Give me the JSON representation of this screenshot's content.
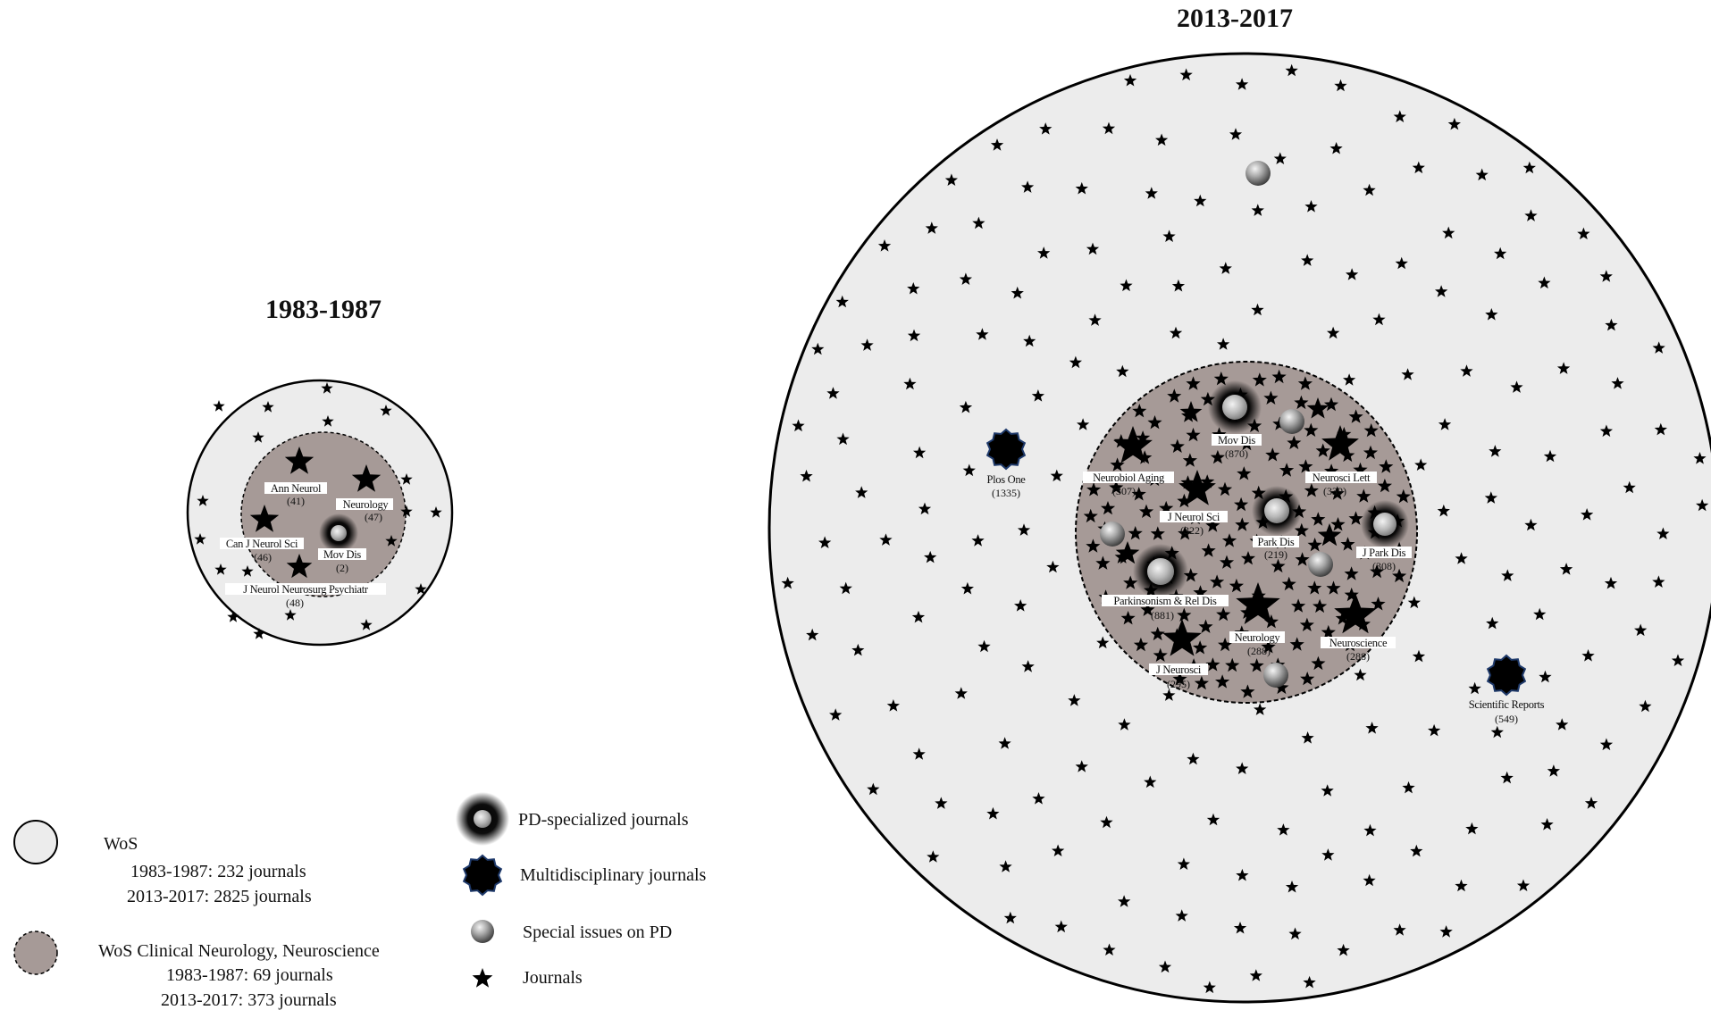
{
  "periods": {
    "early": {
      "title": "1983-1987"
    },
    "late": {
      "title": "2013-2017"
    }
  },
  "early_journals": [
    {
      "key": "ann-neurol",
      "name": "Ann Neurol",
      "count": "(41)",
      "kind": "journal"
    },
    {
      "key": "neurology",
      "name": "Neurology",
      "count": "(47)",
      "kind": "journal"
    },
    {
      "key": "can-j-neurol-sci",
      "name": "Can J Neurol Sci",
      "count": "(46)",
      "kind": "journal"
    },
    {
      "key": "mov-dis",
      "name": "Mov Dis",
      "count": "(2)",
      "kind": "pd-specialized"
    },
    {
      "key": "j-neurol-neurosurg-psychiatr",
      "name": "J Neurol Neurosurg Psychiatr",
      "count": "(48)",
      "kind": "journal"
    }
  ],
  "late_journals": [
    {
      "key": "mov-dis",
      "name": "Mov Dis",
      "count": "(870)",
      "kind": "pd-specialized"
    },
    {
      "key": "neurobiol-aging",
      "name": "Neurobiol Aging",
      "count": "(307)",
      "kind": "journal"
    },
    {
      "key": "neurosci-lett",
      "name": "Neurosci Lett",
      "count": "(339)",
      "kind": "journal"
    },
    {
      "key": "j-neurol-sci",
      "name": "J Neurol Sci",
      "count": "(322)",
      "kind": "journal"
    },
    {
      "key": "park-dis",
      "name": "Park Dis",
      "count": "(219)",
      "kind": "pd-specialized"
    },
    {
      "key": "j-park-dis",
      "name": "J Park Dis",
      "count": "(308)",
      "kind": "pd-specialized"
    },
    {
      "key": "parkinsonism-rel-dis",
      "name": "Parkinsonism & Rel Dis",
      "count": "(881)",
      "kind": "pd-specialized"
    },
    {
      "key": "neurology",
      "name": "Neurology",
      "count": "(288)",
      "kind": "journal"
    },
    {
      "key": "neuroscience",
      "name": "Neuroscience",
      "count": "(288)",
      "kind": "journal"
    },
    {
      "key": "j-neurosci",
      "name": "J Neurosci",
      "count": "(295)",
      "kind": "journal"
    },
    {
      "key": "plos-one",
      "name": "Plos One",
      "count": "(1335)",
      "kind": "multidisciplinary"
    },
    {
      "key": "scientific-reports",
      "name": "Scientific Reports",
      "count": "(549)",
      "kind": "multidisciplinary"
    }
  ],
  "legend": {
    "wos": {
      "title": "WoS",
      "line1": "1983-1987: 232 journals",
      "line2": "2013-2017: 2825 journals"
    },
    "clinical": {
      "title": "WoS Clinical Neurology, Neuroscience",
      "line1": "1983-1987: 69 journals",
      "line2": "2013-2017: 373 journals"
    },
    "pd_specialized": "PD-specialized journals",
    "multidisciplinary": "Multidisciplinary journals",
    "special_issues": "Special issues on PD",
    "journals": "Journals"
  },
  "colors": {
    "outer_fill": "#ececec",
    "inner_fill": "#a69a97",
    "ink": "#000000",
    "badge_edge": "#1f3a6b"
  }
}
